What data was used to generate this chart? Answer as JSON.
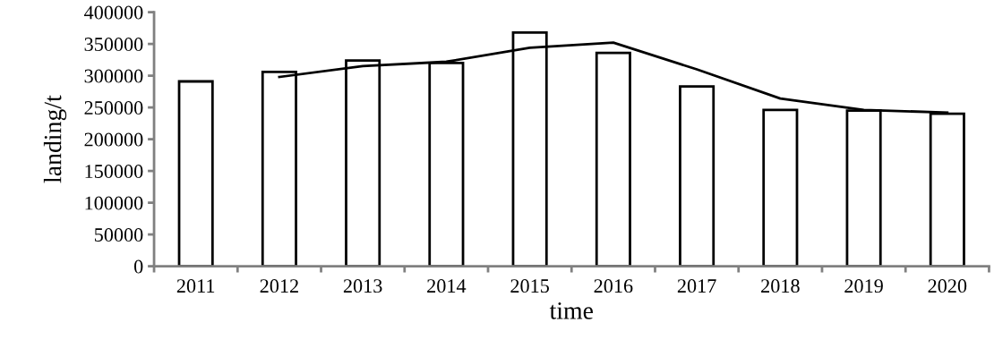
{
  "chart_data": {
    "type": "bar",
    "xlabel": "time",
    "ylabel": "landing/t",
    "categories": [
      "2011",
      "2012",
      "2013",
      "2014",
      "2015",
      "2016",
      "2017",
      "2018",
      "2019",
      "2020"
    ],
    "series": [
      {
        "color": "#ffffff",
        "values": [
          291000,
          306000,
          324000,
          320000,
          368000,
          336000,
          283000,
          246000,
          245000,
          240000
        ]
      },
      {
        "type": "line",
        "color": "#000000",
        "values": [
          null,
          298000,
          315000,
          322000,
          344000,
          352000,
          310000,
          264000,
          246000,
          242000
        ]
      }
    ],
    "ylim": [
      0,
      400000
    ],
    "yticks": [
      0,
      50000,
      100000,
      150000,
      200000,
      250000,
      300000,
      350000,
      400000
    ],
    "grid": false,
    "legend": false,
    "marker": "none",
    "line_style": "solid"
  }
}
